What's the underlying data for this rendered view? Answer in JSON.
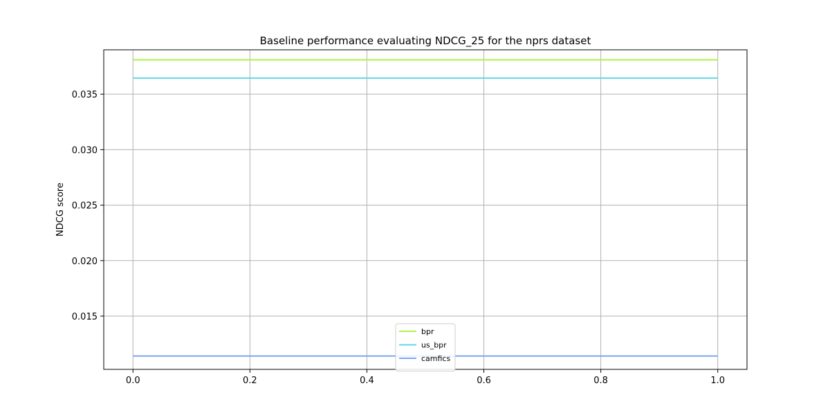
{
  "chart_data": {
    "type": "line",
    "title": "Baseline performance evaluating NDCG_25 for the nprs dataset",
    "xlabel": "",
    "ylabel": "NDCG score",
    "xlim": [
      -0.05,
      1.05
    ],
    "ylim": [
      0.0102,
      0.039
    ],
    "xticks": [
      0.0,
      0.2,
      0.4,
      0.6,
      0.8,
      1.0
    ],
    "xtick_labels": [
      "0.0",
      "0.2",
      "0.4",
      "0.6",
      "0.8",
      "1.0"
    ],
    "yticks": [
      0.015,
      0.02,
      0.025,
      0.03,
      0.035
    ],
    "ytick_labels": [
      "0.015",
      "0.020",
      "0.025",
      "0.030",
      "0.035"
    ],
    "grid": true,
    "legend_position": "bottom-center",
    "series": [
      {
        "name": "bpr",
        "color": "#adf542",
        "x": [
          0.0,
          1.0
        ],
        "y": [
          0.0381,
          0.0381
        ]
      },
      {
        "name": "us_bpr",
        "color": "#5fd9e6",
        "x": [
          0.0,
          1.0
        ],
        "y": [
          0.03645,
          0.03645
        ]
      },
      {
        "name": "camfics",
        "color": "#7aa6f0",
        "x": [
          0.0,
          1.0
        ],
        "y": [
          0.0114,
          0.0114
        ]
      }
    ]
  }
}
